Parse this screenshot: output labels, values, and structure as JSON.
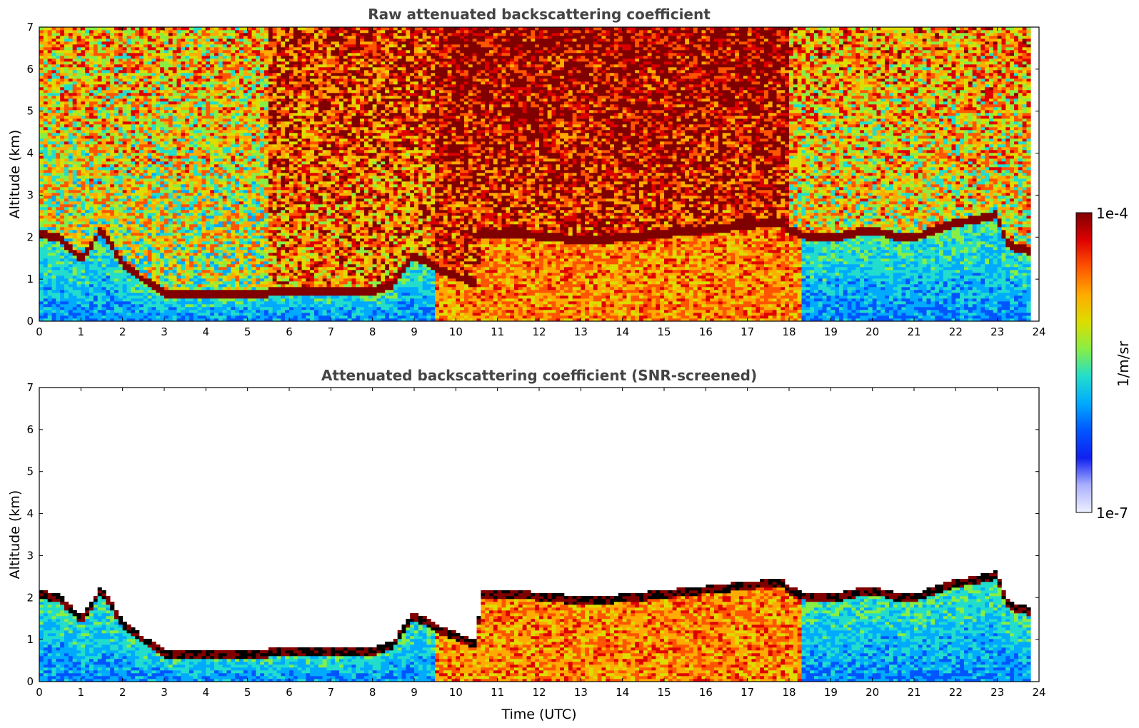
{
  "chart_data": [
    {
      "type": "heatmap",
      "title": "Raw attenuated backscattering coefficient",
      "xlabel": "",
      "ylabel": "Altitude (km)",
      "xlim": [
        0,
        24
      ],
      "ylim": [
        0,
        7
      ],
      "x_ticks": [
        "0",
        "1",
        "2",
        "3",
        "4",
        "5",
        "6",
        "7",
        "8",
        "9",
        "10",
        "11",
        "12",
        "13",
        "14",
        "15",
        "16",
        "17",
        "18",
        "19",
        "20",
        "21",
        "22",
        "23",
        "24"
      ],
      "y_ticks": [
        "0",
        "1",
        "2",
        "3",
        "4",
        "5",
        "6",
        "7"
      ],
      "screened": false,
      "layer_top_km": [
        [
          0,
          2.1
        ],
        [
          0.5,
          2.0
        ],
        [
          1,
          1.5
        ],
        [
          1.5,
          2.2
        ],
        [
          2,
          1.4
        ],
        [
          2.5,
          1.0
        ],
        [
          3,
          0.7
        ],
        [
          4,
          0.65
        ],
        [
          5,
          0.65
        ],
        [
          5.5,
          0.7
        ],
        [
          6,
          0.75
        ],
        [
          7,
          0.7
        ],
        [
          8,
          0.75
        ],
        [
          8.5,
          0.9
        ],
        [
          9,
          1.6
        ],
        [
          9.5,
          1.3
        ],
        [
          10,
          1.1
        ],
        [
          10.5,
          0.9
        ],
        [
          10.6,
          2.1
        ],
        [
          11,
          2.1
        ],
        [
          12,
          2.05
        ],
        [
          13,
          1.95
        ],
        [
          14,
          2.0
        ],
        [
          15,
          2.1
        ],
        [
          16,
          2.2
        ],
        [
          17,
          2.3
        ],
        [
          17.8,
          2.4
        ],
        [
          18,
          2.2
        ],
        [
          18.5,
          2.0
        ],
        [
          19,
          2.0
        ],
        [
          20,
          2.2
        ],
        [
          20.5,
          2.05
        ],
        [
          21,
          2.0
        ],
        [
          21.5,
          2.2
        ],
        [
          22,
          2.35
        ],
        [
          22.5,
          2.45
        ],
        [
          23,
          2.55
        ],
        [
          23.2,
          1.9
        ],
        [
          23.5,
          1.75
        ],
        [
          23.8,
          1.7
        ]
      ],
      "colorbar": {
        "min_label": "1e-7",
        "max_label": "1e-4",
        "label": "1/m/sr",
        "colors": [
          "#eef0ff",
          "#aab0ff",
          "#1020f0",
          "#0055ff",
          "#00aaff",
          "#22ddcc",
          "#88ee44",
          "#dddd00",
          "#ffaa00",
          "#ff5500",
          "#dd0000",
          "#800000"
        ]
      }
    },
    {
      "type": "heatmap",
      "title": "Attenuated backscattering coefficient (SNR-screened)",
      "xlabel": "Time (UTC)",
      "ylabel": "Altitude (km)",
      "xlim": [
        0,
        24
      ],
      "ylim": [
        0,
        7
      ],
      "x_ticks": [
        "0",
        "1",
        "2",
        "3",
        "4",
        "5",
        "6",
        "7",
        "8",
        "9",
        "10",
        "11",
        "12",
        "13",
        "14",
        "15",
        "16",
        "17",
        "18",
        "19",
        "20",
        "21",
        "22",
        "23",
        "24"
      ],
      "y_ticks": [
        "0",
        "1",
        "2",
        "3",
        "4",
        "5",
        "6",
        "7"
      ],
      "screened": true
    }
  ]
}
